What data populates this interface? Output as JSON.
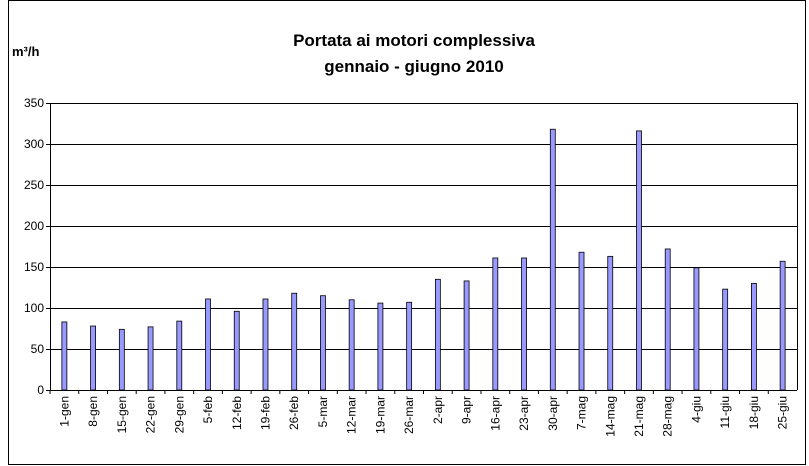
{
  "chart_data": {
    "type": "bar",
    "title": "Portata ai motori complessiva",
    "subtitle": "gennaio - giugno 2010",
    "y_label": "m³/h",
    "categories": [
      "1-gen",
      "8-gen",
      "15-gen",
      "22-gen",
      "29-gen",
      "5-feb",
      "12-feb",
      "19-feb",
      "26-feb",
      "5-mar",
      "12-mar",
      "19-mar",
      "26-mar",
      "2-apr",
      "9-apr",
      "16-apr",
      "23-apr",
      "30-apr",
      "7-mag",
      "14-mag",
      "21-mag",
      "28-mag",
      "4-giu",
      "11-giu",
      "18-giu",
      "25-giu"
    ],
    "values": [
      83,
      78,
      74,
      77,
      84,
      111,
      96,
      111,
      118,
      115,
      110,
      106,
      107,
      135,
      133,
      161,
      161,
      318,
      168,
      163,
      316,
      172,
      149,
      123,
      130,
      157
    ],
    "color": "#9999ff",
    "ylim": [
      0,
      350
    ],
    "yticks": [
      0,
      50,
      100,
      150,
      200,
      250,
      300,
      350
    ],
    "grid": true
  }
}
